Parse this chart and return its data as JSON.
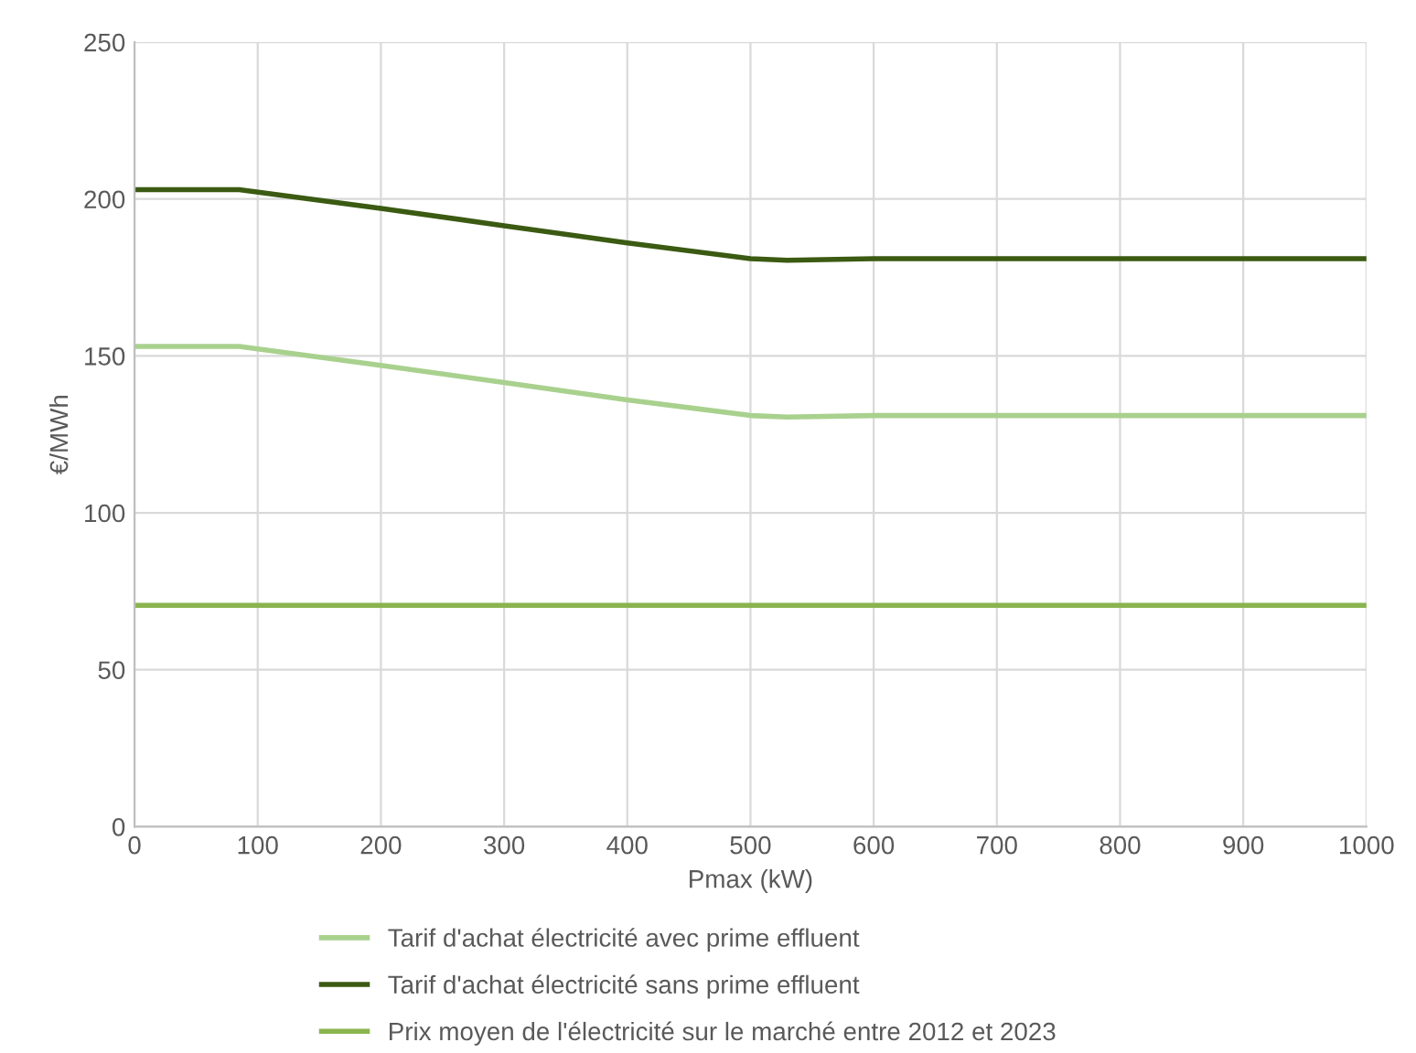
{
  "chart_data": {
    "type": "line",
    "xlabel": "Pmax (kW)",
    "ylabel": "€/MWh",
    "xlim": [
      0,
      1000
    ],
    "xticks": [
      0,
      100,
      200,
      300,
      400,
      500,
      600,
      700,
      800,
      900,
      1000
    ],
    "ylim": [
      0,
      250
    ],
    "yticks": [
      0,
      50,
      100,
      150,
      200,
      250
    ],
    "grid": true,
    "legend": "bottom",
    "marker": "none",
    "line_style": "solid",
    "series": [
      {
        "name": "Tarif d'achat électricité avec prime effluent",
        "color": "#a9d18e",
        "x": [
          0,
          85,
          200,
          300,
          400,
          500,
          530,
          600,
          700,
          800,
          900,
          1000
        ],
        "values": [
          153,
          153,
          147,
          141.5,
          136,
          131,
          130.5,
          131,
          131,
          131,
          131,
          131
        ]
      },
      {
        "name": "Tarif d'achat électricité sans prime effluent",
        "color": "#3b5a12",
        "x": [
          0,
          85,
          200,
          300,
          400,
          500,
          530,
          600,
          700,
          800,
          900,
          1000
        ],
        "values": [
          203,
          203,
          197,
          191.5,
          186,
          181,
          180.5,
          181,
          181,
          181,
          181,
          181
        ]
      },
      {
        "name": "Prix moyen de l'électricité sur le marché entre 2012 et 2023",
        "color": "#8ab44e",
        "x": [
          0,
          1000
        ],
        "values": [
          70.5,
          70.5
        ]
      }
    ]
  }
}
